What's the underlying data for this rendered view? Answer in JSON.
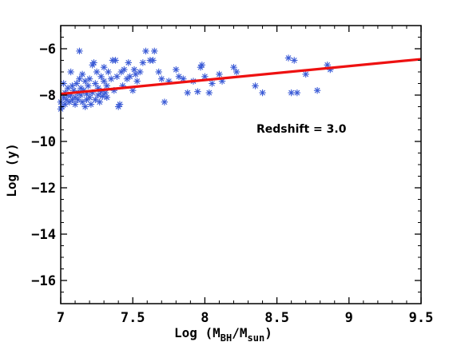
{
  "chart_data": {
    "type": "scatter",
    "xlim": [
      7,
      9.5
    ],
    "ylim": [
      -17,
      -5
    ],
    "xticks": [
      7,
      7.5,
      8,
      8.5,
      9,
      9.5
    ],
    "xtick_labels": [
      "7",
      "7.5",
      "8",
      "8.5",
      "9",
      "9.5"
    ],
    "yticks": [
      -16,
      -14,
      -12,
      -10,
      -8,
      -6
    ],
    "ytick_labels": [
      "−16",
      "−14",
      "−12",
      "−10",
      "−8",
      "−6"
    ],
    "xlabel": {
      "pre": "Log (M",
      "sub1": "BH",
      "mid": "/M",
      "sub2": "sun",
      "post": ")"
    },
    "ylabel": "Log (y)",
    "annotation": "Redshift = 3.0",
    "colors": {
      "points": "#3b5bd6",
      "fit": "#ee1111",
      "axes": "#000000"
    },
    "grid": false,
    "series": [
      {
        "type": "scatter",
        "marker": "asterisk",
        "points": [
          [
            7.0,
            -8.6
          ],
          [
            7.0,
            -8.3
          ],
          [
            7.01,
            -8.5
          ],
          [
            7.02,
            -7.5
          ],
          [
            7.02,
            -8.1
          ],
          [
            7.03,
            -7.9
          ],
          [
            7.03,
            -8.4
          ],
          [
            7.04,
            -8.2
          ],
          [
            7.05,
            -7.7
          ],
          [
            7.05,
            -8.0
          ],
          [
            7.06,
            -8.3
          ],
          [
            7.07,
            -7.0
          ],
          [
            7.07,
            -8.0
          ],
          [
            7.08,
            -7.6
          ],
          [
            7.08,
            -8.2
          ],
          [
            7.09,
            -7.8
          ],
          [
            7.1,
            -8.1
          ],
          [
            7.1,
            -8.4
          ],
          [
            7.11,
            -7.5
          ],
          [
            7.12,
            -7.9
          ],
          [
            7.12,
            -8.2
          ],
          [
            7.13,
            -7.3
          ],
          [
            7.13,
            -6.1
          ],
          [
            7.14,
            -7.7
          ],
          [
            7.14,
            -8.0
          ],
          [
            7.15,
            -8.3
          ],
          [
            7.15,
            -7.1
          ],
          [
            7.16,
            -7.8
          ],
          [
            7.17,
            -8.5
          ],
          [
            7.17,
            -7.4
          ],
          [
            7.18,
            -7.95
          ],
          [
            7.18,
            -8.2
          ],
          [
            7.19,
            -7.6
          ],
          [
            7.2,
            -8.1
          ],
          [
            7.2,
            -7.3
          ],
          [
            7.21,
            -8.4
          ],
          [
            7.22,
            -6.7
          ],
          [
            7.22,
            -7.9
          ],
          [
            7.23,
            -6.6
          ],
          [
            7.24,
            -7.5
          ],
          [
            7.24,
            -8.2
          ],
          [
            7.25,
            -7.0
          ],
          [
            7.26,
            -7.7
          ],
          [
            7.26,
            -8.0
          ],
          [
            7.27,
            -8.3
          ],
          [
            7.28,
            -7.2
          ],
          [
            7.28,
            -7.85
          ],
          [
            7.29,
            -8.05
          ],
          [
            7.3,
            -7.4
          ],
          [
            7.3,
            -6.8
          ],
          [
            7.31,
            -7.9
          ],
          [
            7.32,
            -7.6
          ],
          [
            7.32,
            -8.1
          ],
          [
            7.33,
            -7.0
          ],
          [
            7.35,
            -7.3
          ],
          [
            7.36,
            -6.5
          ],
          [
            7.37,
            -7.8
          ],
          [
            7.38,
            -6.5
          ],
          [
            7.39,
            -7.2
          ],
          [
            7.4,
            -8.5
          ],
          [
            7.41,
            -8.4
          ],
          [
            7.42,
            -7.0
          ],
          [
            7.43,
            -7.6
          ],
          [
            7.44,
            -6.9
          ],
          [
            7.46,
            -7.3
          ],
          [
            7.47,
            -6.6
          ],
          [
            7.48,
            -7.2
          ],
          [
            7.5,
            -7.8
          ],
          [
            7.51,
            -6.9
          ],
          [
            7.52,
            -7.1
          ],
          [
            7.53,
            -7.4
          ],
          [
            7.55,
            -7.0
          ],
          [
            7.57,
            -6.6
          ],
          [
            7.59,
            -6.1
          ],
          [
            7.62,
            -6.5
          ],
          [
            7.64,
            -6.5
          ],
          [
            7.65,
            -6.1
          ],
          [
            7.68,
            -7.0
          ],
          [
            7.7,
            -7.3
          ],
          [
            7.72,
            -8.3
          ],
          [
            7.75,
            -7.4
          ],
          [
            7.8,
            -6.9
          ],
          [
            7.82,
            -7.2
          ],
          [
            7.85,
            -7.3
          ],
          [
            7.88,
            -7.9
          ],
          [
            7.92,
            -7.4
          ],
          [
            7.95,
            -7.85
          ],
          [
            7.97,
            -6.8
          ],
          [
            7.98,
            -6.7
          ],
          [
            8.0,
            -7.2
          ],
          [
            8.03,
            -7.9
          ],
          [
            8.05,
            -7.5
          ],
          [
            8.1,
            -7.1
          ],
          [
            8.12,
            -7.4
          ],
          [
            8.2,
            -6.8
          ],
          [
            8.22,
            -7.0
          ],
          [
            8.35,
            -7.6
          ],
          [
            8.4,
            -7.9
          ],
          [
            8.58,
            -6.4
          ],
          [
            8.6,
            -7.9
          ],
          [
            8.62,
            -6.5
          ],
          [
            8.64,
            -7.9
          ],
          [
            8.7,
            -7.1
          ],
          [
            8.78,
            -7.8
          ],
          [
            8.85,
            -6.7
          ],
          [
            8.87,
            -6.9
          ]
        ]
      },
      {
        "type": "line",
        "points": [
          [
            7.0,
            -7.95
          ],
          [
            9.5,
            -6.45
          ]
        ]
      }
    ]
  }
}
